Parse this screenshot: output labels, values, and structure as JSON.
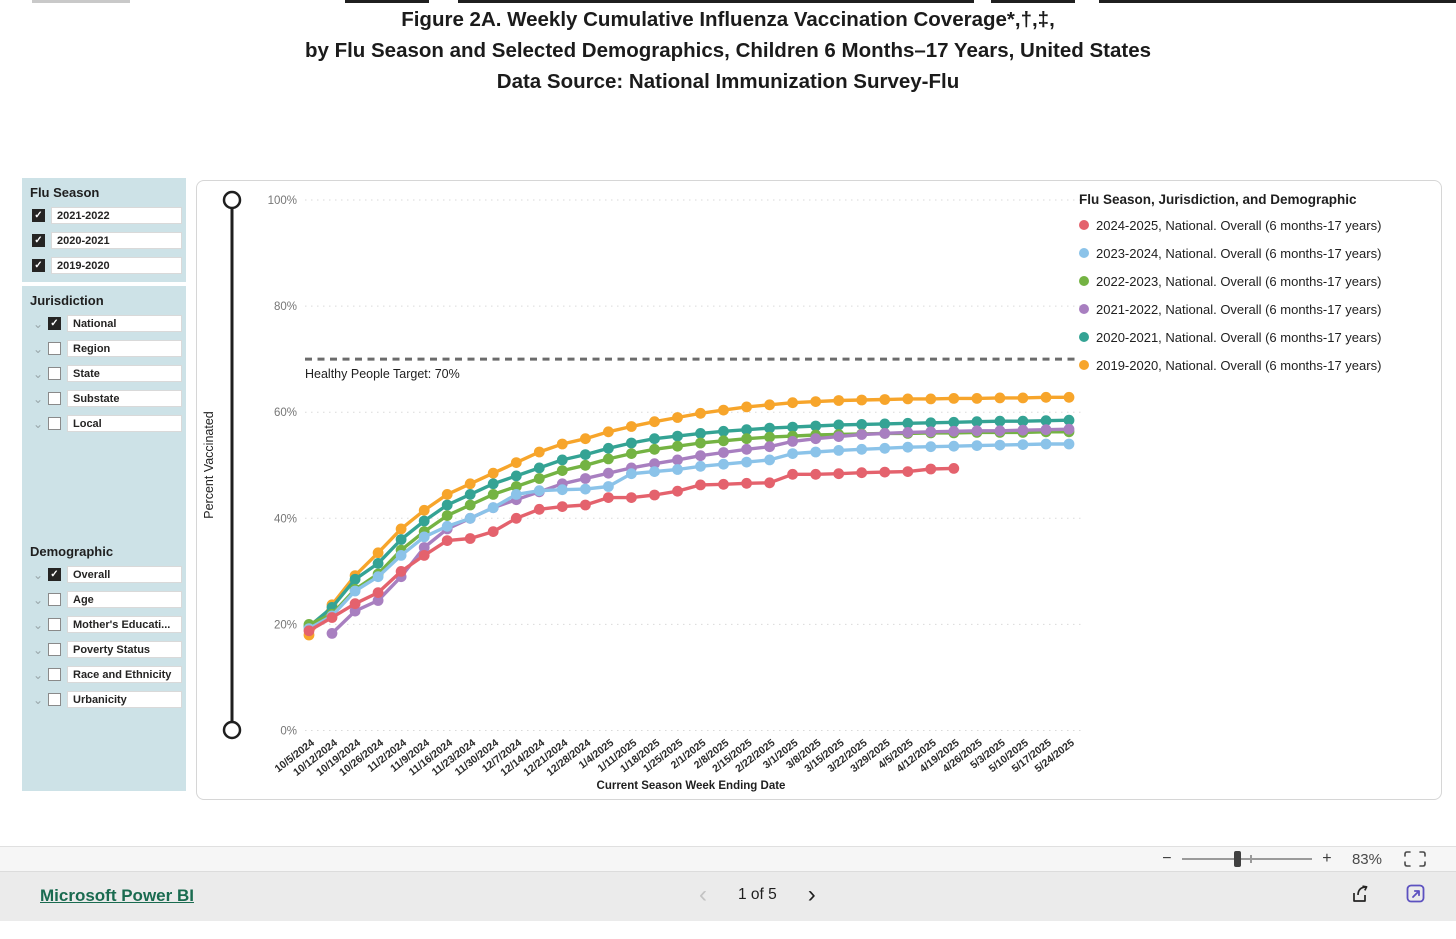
{
  "page": {
    "title_lines": [
      "Figure 2A. Weekly Cumulative Influenza Vaccination Coverage*,†,‡,",
      "by Flu Season and Selected Demographics, Children 6 Months–17 Years, United States",
      "Data Source: National Immunization Survey-Flu"
    ]
  },
  "sidebar": {
    "flu_season": {
      "title": "Flu Season",
      "items": [
        {
          "label": "2021-2022",
          "checked": true
        },
        {
          "label": "2020-2021",
          "checked": true
        },
        {
          "label": "2019-2020",
          "checked": true
        }
      ]
    },
    "jurisdiction": {
      "title": "Jurisdiction",
      "items": [
        {
          "label": "National",
          "checked": true
        },
        {
          "label": "Region",
          "checked": false
        },
        {
          "label": "State",
          "checked": false
        },
        {
          "label": "Substate",
          "checked": false
        },
        {
          "label": "Local",
          "checked": false
        }
      ]
    },
    "demographic": {
      "title": "Demographic",
      "items": [
        {
          "label": "Overall",
          "checked": true
        },
        {
          "label": "Age",
          "checked": false
        },
        {
          "label": "Mother's Educati...",
          "checked": false
        },
        {
          "label": "Poverty Status",
          "checked": false
        },
        {
          "label": "Race and Ethnicity",
          "checked": false
        },
        {
          "label": "Urbanicity",
          "checked": false
        }
      ]
    }
  },
  "chart": {
    "legend_title": "Flu Season, Jurisdiction, and Demographic",
    "y_axis_label": "Percent Vaccinated",
    "x_axis_label": "Current Season Week Ending Date",
    "target_label": "Healthy People Target: 70%",
    "y_ticks": [
      "0%",
      "20%",
      "40%",
      "60%",
      "80%",
      "100%"
    ]
  },
  "chart_data": {
    "type": "line",
    "title": "Weekly Cumulative Influenza Vaccination Coverage by Flu Season, Children 6 Months–17 Years, United States",
    "xlabel": "Current Season Week Ending Date",
    "ylabel": "Percent Vaccinated",
    "ylim": [
      0,
      100
    ],
    "grid": true,
    "legend_position": "top-right",
    "target_line": {
      "value": 70,
      "label": "Healthy People Target: 70%"
    },
    "x": [
      "10/5/2024",
      "10/12/2024",
      "10/19/2024",
      "10/26/2024",
      "11/2/2024",
      "11/9/2024",
      "11/16/2024",
      "11/23/2024",
      "11/30/2024",
      "12/7/2024",
      "12/14/2024",
      "12/21/2024",
      "12/28/2024",
      "1/4/2025",
      "1/11/2025",
      "1/18/2025",
      "1/25/2025",
      "2/1/2025",
      "2/8/2025",
      "2/15/2025",
      "2/22/2025",
      "3/1/2025",
      "3/8/2025",
      "3/15/2025",
      "3/22/2025",
      "3/29/2025",
      "4/5/2025",
      "4/12/2025",
      "4/19/2025",
      "4/26/2025",
      "5/3/2025",
      "5/10/2025",
      "5/17/2025",
      "5/24/2025"
    ],
    "series": [
      {
        "name": "2024-2025, National. Overall (6 months-17 years)",
        "color": "#e4626d",
        "values": [
          18.8,
          21.3,
          23.9,
          26,
          30,
          33,
          35.8,
          36.2,
          37.5,
          40,
          41.7,
          42.2,
          42.5,
          43.9,
          43.9,
          44.4,
          45.1,
          46.3,
          46.4,
          46.6,
          46.7,
          48.3,
          48.3,
          48.4,
          48.6,
          48.7,
          48.8,
          49.3,
          49.4,
          null,
          null,
          null,
          null,
          null
        ]
      },
      {
        "name": "2023-2024, National. Overall (6 months-17 years)",
        "color": "#8bc3e9",
        "values": [
          19.2,
          21.6,
          26.3,
          29,
          33,
          36.5,
          38.5,
          40,
          42,
          44.5,
          45.2,
          45.4,
          45.5,
          46,
          48.4,
          48.8,
          49.2,
          49.8,
          50.2,
          50.6,
          51,
          52.2,
          52.5,
          52.8,
          53,
          53.2,
          53.4,
          53.5,
          53.6,
          53.7,
          53.8,
          53.9,
          54,
          54
        ]
      },
      {
        "name": "2022-2023, National. Overall (6 months-17 years)",
        "color": "#74b343",
        "values": [
          20,
          21.9,
          26.6,
          29.5,
          34,
          37.5,
          40.5,
          42.5,
          44.5,
          46,
          47.5,
          49,
          50,
          51.2,
          52.2,
          53,
          53.6,
          54.2,
          54.6,
          55,
          55.3,
          55.5,
          55.7,
          55.8,
          55.9,
          56,
          56,
          56.1,
          56.1,
          56.2,
          56.2,
          56.2,
          56.3,
          56.3
        ]
      },
      {
        "name": "2021-2022, National. Overall (6 months-17 years)",
        "color": "#a87fc0",
        "values": [
          null,
          18.3,
          22.5,
          24.5,
          29,
          34.5,
          38,
          40,
          42,
          43.5,
          45,
          46.5,
          47.5,
          48.5,
          49.5,
          50.3,
          51,
          51.8,
          52.4,
          53,
          53.5,
          54.5,
          55,
          55.4,
          55.8,
          56,
          56.2,
          56.3,
          56.4,
          56.5,
          56.5,
          56.6,
          56.7,
          56.8
        ]
      },
      {
        "name": "2020-2021, National. Overall (6 months-17 years)",
        "color": "#34a394",
        "values": [
          19.6,
          23.2,
          28.5,
          31.5,
          36,
          39.5,
          42.5,
          44.5,
          46.5,
          48,
          49.5,
          51,
          52,
          53.2,
          54.2,
          55,
          55.5,
          56,
          56.4,
          56.7,
          57,
          57.2,
          57.4,
          57.6,
          57.7,
          57.8,
          57.9,
          58,
          58.1,
          58.2,
          58.3,
          58.3,
          58.4,
          58.5
        ]
      },
      {
        "name": "2019-2020, National. Overall (6 months-17 years)",
        "color": "#f7a52b",
        "values": [
          18,
          23.7,
          29.2,
          33.5,
          38,
          41.5,
          44.5,
          46.5,
          48.5,
          50.5,
          52.5,
          54,
          55,
          56.3,
          57.3,
          58.2,
          59,
          59.8,
          60.4,
          61,
          61.4,
          61.8,
          62,
          62.2,
          62.3,
          62.4,
          62.5,
          62.5,
          62.6,
          62.6,
          62.7,
          62.7,
          62.8,
          62.8
        ]
      }
    ]
  },
  "footer": {
    "brand": "Microsoft Power BI",
    "page_indicator": "1 of 5",
    "zoom_percent": "83%"
  },
  "colors": {
    "sidebar_bg": "#cde2e7",
    "target_line": "#6b6b6b",
    "brand_link": "#1a6b50",
    "popout_icon": "#5c51c0"
  }
}
